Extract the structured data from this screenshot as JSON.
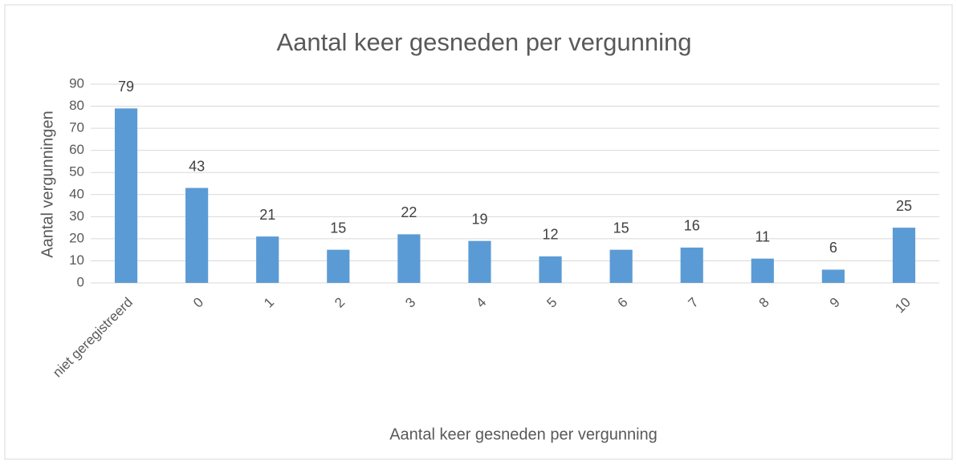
{
  "chart_data": {
    "type": "bar",
    "title": "Aantal keer gesneden per vergunning",
    "x_label": "Aantal keer gesneden per vergunning",
    "y_label": "Aantal vergunningen",
    "categories": [
      "niet geregistreerd",
      "0",
      "1",
      "2",
      "3",
      "4",
      "5",
      "6",
      "7",
      "8",
      "9",
      "10"
    ],
    "values": [
      79,
      43,
      21,
      15,
      22,
      19,
      12,
      15,
      16,
      11,
      6,
      25
    ],
    "color": "#5b9bd5",
    "ylim": [
      0,
      90
    ],
    "yticks": [
      0,
      10,
      20,
      30,
      40,
      50,
      60,
      70,
      80,
      90
    ],
    "grid": true
  }
}
